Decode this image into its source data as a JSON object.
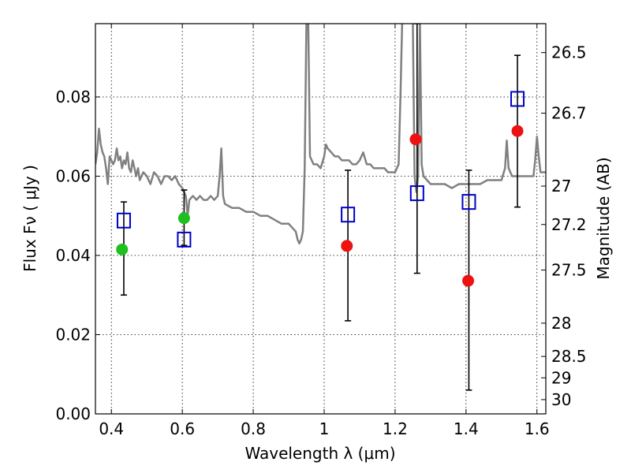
{
  "chart_data": {
    "type": "scatter",
    "xlabel": "Wavelength  λ (μm)",
    "ylabel": "Flux  Fν  ( μJy )",
    "y2label": "Magnitude (AB)",
    "xlim": [
      0.355,
      1.625
    ],
    "ylim": [
      0.0,
      0.0985
    ],
    "grid": true,
    "x_ticks": [
      0.4,
      0.6,
      0.8,
      1.0,
      1.2,
      1.4,
      1.6
    ],
    "x_tick_labels": [
      "0.4",
      "0.6",
      "0.8",
      "1",
      "1.2",
      "1.4",
      "1.6"
    ],
    "y_ticks": [
      0.0,
      0.02,
      0.04,
      0.06,
      0.08
    ],
    "y_tick_labels": [
      "0.00",
      "0.02",
      "0.04",
      "0.06",
      "0.08"
    ],
    "y2_ticks": [
      {
        "label": "26.5",
        "flux": 0.0912
      },
      {
        "label": "26.7",
        "flux": 0.0759
      },
      {
        "label": "27",
        "flux": 0.0575
      },
      {
        "label": "27.2",
        "flux": 0.0478
      },
      {
        "label": "27.5",
        "flux": 0.0363
      },
      {
        "label": "28",
        "flux": 0.0229
      },
      {
        "label": "28.5",
        "flux": 0.0145
      },
      {
        "label": "29",
        "flux": 0.0091
      },
      {
        "label": "30",
        "flux": 0.0036
      }
    ],
    "series": [
      {
        "marker": "open-square",
        "color": "#0000cc",
        "points": [
          {
            "x": 0.435,
            "y": 0.0488,
            "ylo": 0.03,
            "yhi": 0.0535
          },
          {
            "x": 0.605,
            "y": 0.044,
            "ylo": 0.0425,
            "yhi": 0.0565
          },
          {
            "x": 1.067,
            "y": 0.0503,
            "ylo": 0.0235,
            "yhi": 0.0615
          },
          {
            "x": 1.262,
            "y": 0.0557,
            "ylo": 0.0355,
            "yhi": 0.0985
          },
          {
            "x": 1.408,
            "y": 0.0535,
            "ylo": 0.006,
            "yhi": 0.0615
          },
          {
            "x": 1.545,
            "y": 0.0795,
            "ylo": 0.0522,
            "yhi": 0.0905
          }
        ]
      },
      {
        "marker": "filled-circle",
        "color": "#1fbf1f",
        "points": [
          {
            "x": 0.43,
            "y": 0.0415
          },
          {
            "x": 0.605,
            "y": 0.0494
          }
        ]
      },
      {
        "marker": "filled-circle",
        "color": "#ee1111",
        "points": [
          {
            "x": 1.064,
            "y": 0.0424
          },
          {
            "x": 1.258,
            "y": 0.0693
          },
          {
            "x": 1.406,
            "y": 0.0336
          },
          {
            "x": 1.545,
            "y": 0.0714
          }
        ]
      },
      {
        "type": "line",
        "color": "#808080",
        "points": [
          [
            0.355,
            0.063
          ],
          [
            0.36,
            0.066
          ],
          [
            0.365,
            0.072
          ],
          [
            0.37,
            0.068
          ],
          [
            0.375,
            0.066
          ],
          [
            0.38,
            0.065
          ],
          [
            0.385,
            0.062
          ],
          [
            0.39,
            0.058
          ],
          [
            0.395,
            0.065
          ],
          [
            0.4,
            0.064
          ],
          [
            0.405,
            0.063
          ],
          [
            0.41,
            0.064
          ],
          [
            0.415,
            0.067
          ],
          [
            0.42,
            0.064
          ],
          [
            0.425,
            0.065
          ],
          [
            0.43,
            0.062
          ],
          [
            0.435,
            0.064
          ],
          [
            0.44,
            0.063
          ],
          [
            0.445,
            0.066
          ],
          [
            0.45,
            0.062
          ],
          [
            0.455,
            0.061
          ],
          [
            0.46,
            0.064
          ],
          [
            0.465,
            0.062
          ],
          [
            0.47,
            0.06
          ],
          [
            0.475,
            0.062
          ],
          [
            0.48,
            0.059
          ],
          [
            0.49,
            0.061
          ],
          [
            0.5,
            0.06
          ],
          [
            0.51,
            0.058
          ],
          [
            0.52,
            0.061
          ],
          [
            0.53,
            0.06
          ],
          [
            0.54,
            0.058
          ],
          [
            0.55,
            0.06
          ],
          [
            0.56,
            0.06
          ],
          [
            0.57,
            0.059
          ],
          [
            0.58,
            0.06
          ],
          [
            0.59,
            0.058
          ],
          [
            0.6,
            0.057
          ],
          [
            0.61,
            0.055
          ],
          [
            0.615,
            0.05
          ],
          [
            0.62,
            0.054
          ],
          [
            0.63,
            0.055
          ],
          [
            0.64,
            0.054
          ],
          [
            0.65,
            0.055
          ],
          [
            0.66,
            0.054
          ],
          [
            0.67,
            0.054
          ],
          [
            0.68,
            0.055
          ],
          [
            0.69,
            0.054
          ],
          [
            0.7,
            0.055
          ],
          [
            0.705,
            0.06
          ],
          [
            0.71,
            0.067
          ],
          [
            0.715,
            0.055
          ],
          [
            0.72,
            0.053
          ],
          [
            0.74,
            0.052
          ],
          [
            0.76,
            0.052
          ],
          [
            0.78,
            0.051
          ],
          [
            0.8,
            0.051
          ],
          [
            0.82,
            0.05
          ],
          [
            0.84,
            0.05
          ],
          [
            0.86,
            0.049
          ],
          [
            0.88,
            0.048
          ],
          [
            0.9,
            0.048
          ],
          [
            0.92,
            0.046
          ],
          [
            0.925,
            0.044
          ],
          [
            0.93,
            0.043
          ],
          [
            0.935,
            0.044
          ],
          [
            0.94,
            0.046
          ],
          [
            0.945,
            0.062
          ],
          [
            0.95,
            0.099
          ],
          [
            0.955,
            0.099
          ],
          [
            0.96,
            0.065
          ],
          [
            0.97,
            0.063
          ],
          [
            0.98,
            0.063
          ],
          [
            0.99,
            0.062
          ],
          [
            1.0,
            0.065
          ],
          [
            1.005,
            0.068
          ],
          [
            1.01,
            0.067
          ],
          [
            1.02,
            0.066
          ],
          [
            1.03,
            0.065
          ],
          [
            1.04,
            0.065
          ],
          [
            1.05,
            0.064
          ],
          [
            1.06,
            0.064
          ],
          [
            1.07,
            0.064
          ],
          [
            1.08,
            0.063
          ],
          [
            1.09,
            0.063
          ],
          [
            1.1,
            0.064
          ],
          [
            1.11,
            0.066
          ],
          [
            1.12,
            0.063
          ],
          [
            1.13,
            0.063
          ],
          [
            1.14,
            0.062
          ],
          [
            1.15,
            0.062
          ],
          [
            1.16,
            0.062
          ],
          [
            1.17,
            0.062
          ],
          [
            1.18,
            0.061
          ],
          [
            1.19,
            0.061
          ],
          [
            1.2,
            0.061
          ],
          [
            1.21,
            0.063
          ],
          [
            1.215,
            0.08
          ],
          [
            1.22,
            0.099
          ],
          [
            1.25,
            0.099
          ],
          [
            1.255,
            0.06
          ],
          [
            1.26,
            0.056
          ],
          [
            1.265,
            0.06
          ],
          [
            1.27,
            0.099
          ],
          [
            1.275,
            0.063
          ],
          [
            1.28,
            0.06
          ],
          [
            1.3,
            0.058
          ],
          [
            1.32,
            0.058
          ],
          [
            1.34,
            0.058
          ],
          [
            1.36,
            0.057
          ],
          [
            1.38,
            0.058
          ],
          [
            1.4,
            0.058
          ],
          [
            1.42,
            0.058
          ],
          [
            1.44,
            0.058
          ],
          [
            1.46,
            0.059
          ],
          [
            1.48,
            0.059
          ],
          [
            1.5,
            0.059
          ],
          [
            1.51,
            0.062
          ],
          [
            1.515,
            0.069
          ],
          [
            1.52,
            0.062
          ],
          [
            1.53,
            0.06
          ],
          [
            1.55,
            0.06
          ],
          [
            1.57,
            0.06
          ],
          [
            1.59,
            0.06
          ],
          [
            1.595,
            0.064
          ],
          [
            1.6,
            0.07
          ],
          [
            1.605,
            0.065
          ],
          [
            1.61,
            0.061
          ],
          [
            1.625,
            0.061
          ]
        ]
      }
    ]
  }
}
